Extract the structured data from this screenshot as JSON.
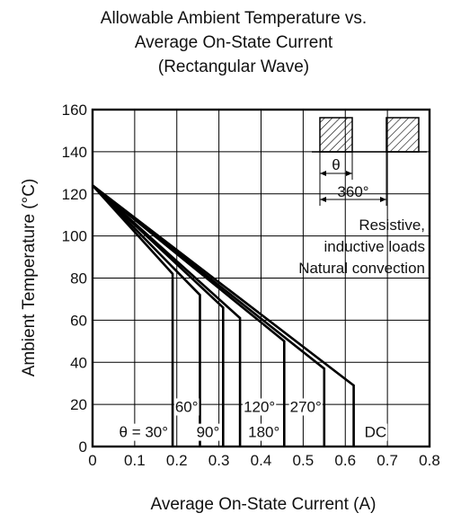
{
  "chart_data": {
    "type": "line",
    "title": [
      "Allowable Ambient Temperature vs.",
      "Average On-State Current",
      "(Rectangular Wave)"
    ],
    "xlabel": "Average On-State Current  (A)",
    "ylabel": "Ambient Temperature  (°C)",
    "xlim": [
      0,
      0.8
    ],
    "ylim": [
      0,
      160
    ],
    "x_ticks": [
      "0",
      "0.1",
      "0.2",
      "0.3",
      "0.4",
      "0.5",
      "0.6",
      "0.7",
      "0.8"
    ],
    "y_ticks": [
      "0",
      "20",
      "40",
      "60",
      "80",
      "100",
      "120",
      "140",
      "160"
    ],
    "grid": true,
    "series": [
      {
        "name": "θ = 30°",
        "points": [
          [
            0,
            124
          ],
          [
            0.19,
            82
          ],
          [
            0.19,
            0
          ]
        ]
      },
      {
        "name": "60°",
        "points": [
          [
            0,
            124
          ],
          [
            0.255,
            72
          ],
          [
            0.255,
            0
          ]
        ]
      },
      {
        "name": "90°",
        "points": [
          [
            0,
            124
          ],
          [
            0.31,
            66
          ],
          [
            0.31,
            0
          ]
        ]
      },
      {
        "name": "120°",
        "points": [
          [
            0,
            124
          ],
          [
            0.35,
            61
          ],
          [
            0.35,
            0
          ]
        ]
      },
      {
        "name": "180°",
        "points": [
          [
            0,
            124
          ],
          [
            0.455,
            50
          ],
          [
            0.455,
            0
          ]
        ]
      },
      {
        "name": "270°",
        "points": [
          [
            0,
            124
          ],
          [
            0.55,
            37
          ],
          [
            0.55,
            0
          ]
        ]
      },
      {
        "name": "DC",
        "points": [
          [
            0,
            124
          ],
          [
            0.62,
            29
          ],
          [
            0.62,
            0
          ]
        ]
      }
    ],
    "annotations": {
      "theta": "θ",
      "period": "360°",
      "notes": [
        "Resistive,",
        "inductive loads",
        "Natural convection"
      ]
    }
  }
}
